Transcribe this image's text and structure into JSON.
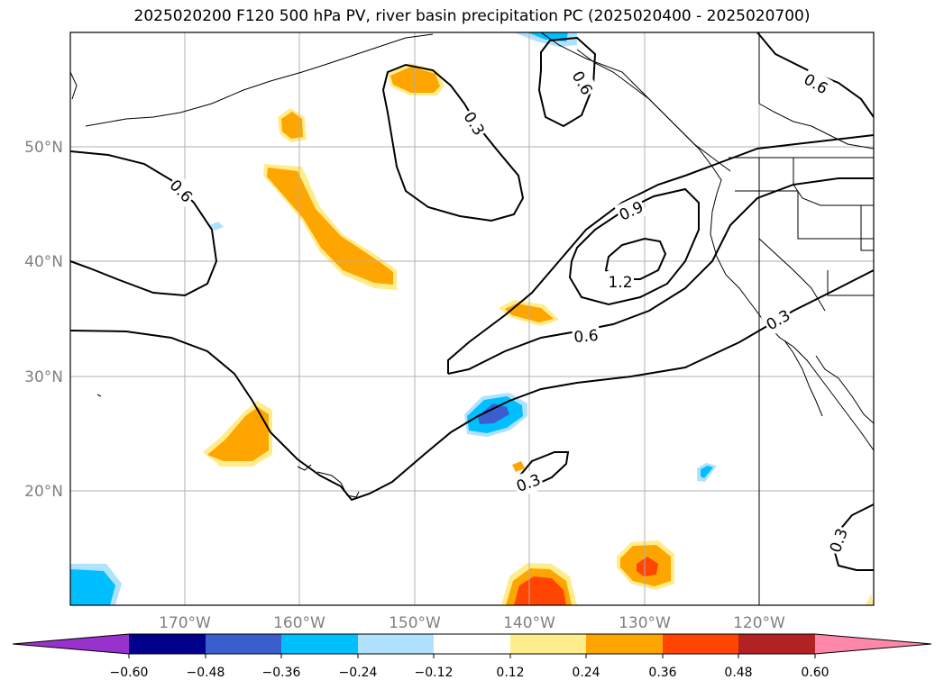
{
  "title": "2025020200 F120 500 hPa PV, river basin precipitation PC (2025020400 - 2025020700)",
  "map": {
    "lat_labels": [
      "50°N",
      "40°N",
      "30°N",
      "20°N"
    ],
    "lon_labels": [
      "170°W",
      "160°W",
      "150°W",
      "140°W",
      "130°W",
      "120°W"
    ],
    "contour_labels": [
      "0.6",
      "0.3",
      "0.6",
      "0.6",
      "0.9",
      "1.2",
      "0.6",
      "0.3",
      "0.3",
      "0.3"
    ]
  },
  "colorbar": {
    "ticks": [
      "−0.60",
      "−0.48",
      "−0.36",
      "−0.24",
      "−0.12",
      "0.12",
      "0.24",
      "0.36",
      "0.48",
      "0.60"
    ],
    "colors": [
      "#9932cc",
      "#00008b",
      "#3a5fcd",
      "#00bfff",
      "#b0e2ff",
      "#ffffff",
      "#ffec8b",
      "#ffa500",
      "#ff4500",
      "#b22222",
      "#ff88aa"
    ]
  },
  "colors": {
    "contour": "#000000",
    "grid": "#b0b0b0",
    "label": "#808080"
  }
}
